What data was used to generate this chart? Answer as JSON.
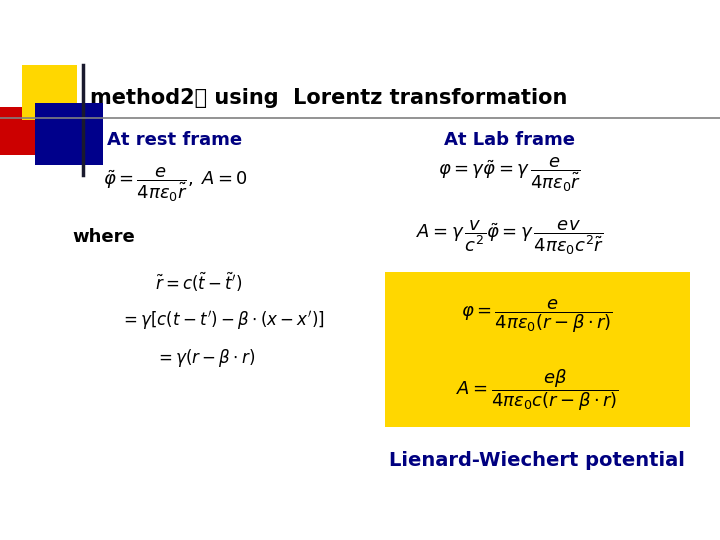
{
  "title": "method2： using  Lorentz transformation",
  "title_fontsize": 15,
  "title_color": "#000000",
  "background_color": "#ffffff",
  "left_heading": "At rest frame",
  "right_heading": "At Lab frame",
  "heading_fontsize": 13,
  "heading_color": "#000080",
  "where_label": "where",
  "box_color": "#FFD700",
  "footer": "Lienard-Wiechert potential",
  "footer_fontsize": 14,
  "footer_color": "#000080",
  "decoration_yellow": "#FFD700",
  "decoration_blue": "#00008B",
  "decoration_red": "#CC0000",
  "line_color": "#808080",
  "eq_fontsize": 12
}
